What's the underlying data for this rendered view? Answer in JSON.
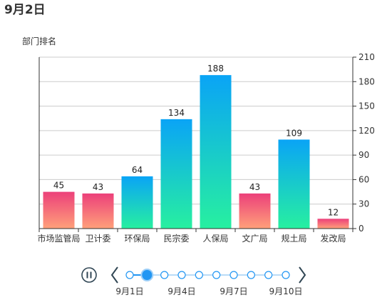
{
  "title": "9月2日",
  "chart_data": {
    "type": "bar",
    "ylabel": "部门排名",
    "xlabel": "",
    "categories": [
      "市场监管局",
      "卫计委",
      "环保局",
      "民宗委",
      "人保局",
      "文广局",
      "规土局",
      "发改局"
    ],
    "values": [
      45,
      43,
      64,
      134,
      188,
      43,
      109,
      12
    ],
    "ylim": [
      0,
      210
    ],
    "yticks": [
      0,
      30,
      60,
      90,
      120,
      150,
      180,
      210
    ],
    "y_axis_side": "right",
    "grid": true,
    "colors": {
      "low_top": "#ec407a",
      "low_bottom": "#ffa07a",
      "high_top": "#0aa4f6",
      "high_bottom": "#27f0a0",
      "grid": "#cccccc",
      "axis": "#333333"
    }
  },
  "timeline": {
    "points": [
      "9月1日",
      "9月2日",
      "9月3日",
      "9月4日",
      "9月5日",
      "9月6日",
      "9月7日",
      "9月8日",
      "9月9日",
      "9月10日"
    ],
    "labels": [
      "9月1日",
      "9月4日",
      "9月7日",
      "9月10日"
    ],
    "current_index": 1,
    "color": "#2196f3",
    "control_color": "#304654"
  }
}
